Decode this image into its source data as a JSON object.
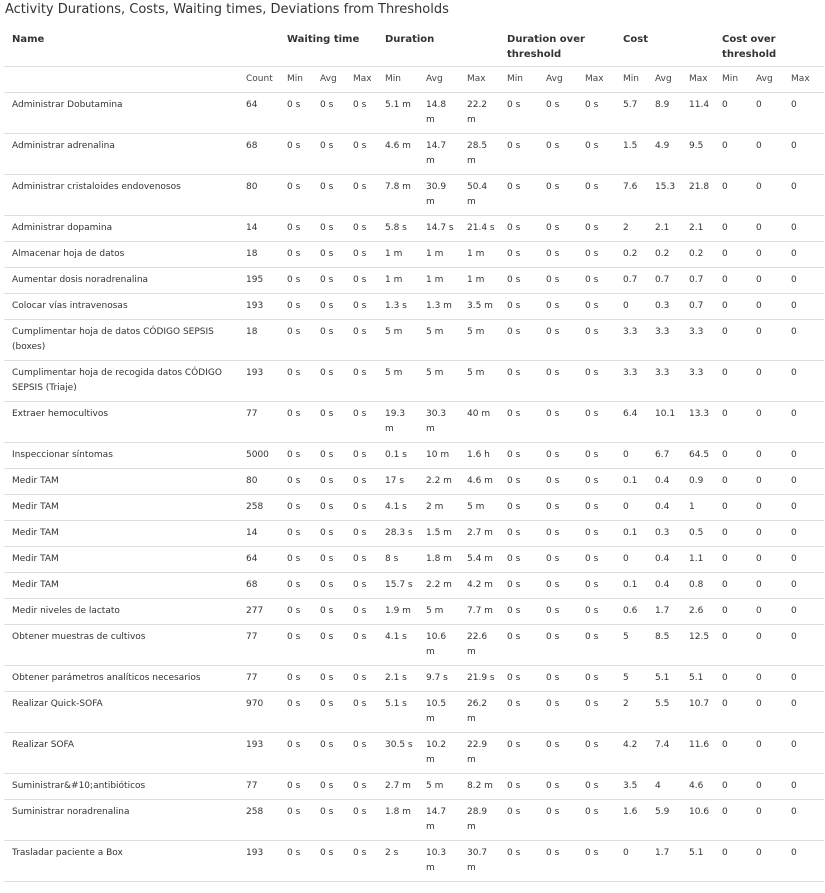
{
  "page": {
    "title": "Activity Durations, Costs, Waiting times, Deviations from Thresholds"
  },
  "table": {
    "group_headers": {
      "name": "Name",
      "waiting": "Waiting time",
      "duration": "Duration",
      "duration_over": "Duration over threshold",
      "cost": "Cost",
      "cost_over": "Cost over threshold"
    },
    "sub_headers": [
      "Count",
      "Min",
      "Avg",
      "Max",
      "Min",
      "Avg",
      "Max",
      "Min",
      "Avg",
      "Max",
      "Min",
      "Avg",
      "Max",
      "Min",
      "Avg",
      "Max"
    ],
    "rows": [
      {
        "name": "Administrar Dobutamina",
        "count": "64",
        "wt_min": "0 s",
        "wt_avg": "0 s",
        "wt_max": "0 s",
        "d_min": "5.1 m",
        "d_avg": "14.8 m",
        "d_max": "22.2 m",
        "do_min": "0 s",
        "do_avg": "0 s",
        "do_max": "0 s",
        "c_min": "5.7",
        "c_avg": "8.9",
        "c_max": "11.4",
        "co_min": "0",
        "co_avg": "0",
        "co_max": "0"
      },
      {
        "name": "Administrar adrenalina",
        "count": "68",
        "wt_min": "0 s",
        "wt_avg": "0 s",
        "wt_max": "0 s",
        "d_min": "4.6 m",
        "d_avg": "14.7 m",
        "d_max": "28.5 m",
        "do_min": "0 s",
        "do_avg": "0 s",
        "do_max": "0 s",
        "c_min": "1.5",
        "c_avg": "4.9",
        "c_max": "9.5",
        "co_min": "0",
        "co_avg": "0",
        "co_max": "0"
      },
      {
        "name": "Administrar cristaloides endovenosos",
        "count": "80",
        "wt_min": "0 s",
        "wt_avg": "0 s",
        "wt_max": "0 s",
        "d_min": "7.8 m",
        "d_avg": "30.9 m",
        "d_max": "50.4 m",
        "do_min": "0 s",
        "do_avg": "0 s",
        "do_max": "0 s",
        "c_min": "7.6",
        "c_avg": "15.3",
        "c_max": "21.8",
        "co_min": "0",
        "co_avg": "0",
        "co_max": "0"
      },
      {
        "name": "Administrar dopamina",
        "count": "14",
        "wt_min": "0 s",
        "wt_avg": "0 s",
        "wt_max": "0 s",
        "d_min": "5.8 s",
        "d_avg": "14.7 s",
        "d_max": "21.4 s",
        "do_min": "0 s",
        "do_avg": "0 s",
        "do_max": "0 s",
        "c_min": "2",
        "c_avg": "2.1",
        "c_max": "2.1",
        "co_min": "0",
        "co_avg": "0",
        "co_max": "0"
      },
      {
        "name": "Almacenar hoja de datos",
        "count": "18",
        "wt_min": "0 s",
        "wt_avg": "0 s",
        "wt_max": "0 s",
        "d_min": "1 m",
        "d_avg": "1 m",
        "d_max": "1 m",
        "do_min": "0 s",
        "do_avg": "0 s",
        "do_max": "0 s",
        "c_min": "0.2",
        "c_avg": "0.2",
        "c_max": "0.2",
        "co_min": "0",
        "co_avg": "0",
        "co_max": "0"
      },
      {
        "name": "Aumentar dosis noradrenalina",
        "count": "195",
        "wt_min": "0 s",
        "wt_avg": "0 s",
        "wt_max": "0 s",
        "d_min": "1 m",
        "d_avg": "1 m",
        "d_max": "1 m",
        "do_min": "0 s",
        "do_avg": "0 s",
        "do_max": "0 s",
        "c_min": "0.7",
        "c_avg": "0.7",
        "c_max": "0.7",
        "co_min": "0",
        "co_avg": "0",
        "co_max": "0"
      },
      {
        "name": "Colocar vías intravenosas",
        "count": "193",
        "wt_min": "0 s",
        "wt_avg": "0 s",
        "wt_max": "0 s",
        "d_min": "1.3 s",
        "d_avg": "1.3 m",
        "d_max": "3.5 m",
        "do_min": "0 s",
        "do_avg": "0 s",
        "do_max": "0 s",
        "c_min": "0",
        "c_avg": "0.3",
        "c_max": "0.7",
        "co_min": "0",
        "co_avg": "0",
        "co_max": "0"
      },
      {
        "name": "Cumplimentar hoja de datos CÓDIGO SEPSIS (boxes)",
        "count": "18",
        "wt_min": "0 s",
        "wt_avg": "0 s",
        "wt_max": "0 s",
        "d_min": "5 m",
        "d_avg": "5 m",
        "d_max": "5 m",
        "do_min": "0 s",
        "do_avg": "0 s",
        "do_max": "0 s",
        "c_min": "3.3",
        "c_avg": "3.3",
        "c_max": "3.3",
        "co_min": "0",
        "co_avg": "0",
        "co_max": "0"
      },
      {
        "name": "Cumplimentar hoja de recogida datos CÓDIGO SEPSIS (Triaje)",
        "count": "193",
        "wt_min": "0 s",
        "wt_avg": "0 s",
        "wt_max": "0 s",
        "d_min": "5 m",
        "d_avg": "5 m",
        "d_max": "5 m",
        "do_min": "0 s",
        "do_avg": "0 s",
        "do_max": "0 s",
        "c_min": "3.3",
        "c_avg": "3.3",
        "c_max": "3.3",
        "co_min": "0",
        "co_avg": "0",
        "co_max": "0"
      },
      {
        "name": "Extraer hemocultivos",
        "count": "77",
        "wt_min": "0 s",
        "wt_avg": "0 s",
        "wt_max": "0 s",
        "d_min": "19.3 m",
        "d_avg": "30.3 m",
        "d_max": "40 m",
        "do_min": "0 s",
        "do_avg": "0 s",
        "do_max": "0 s",
        "c_min": "6.4",
        "c_avg": "10.1",
        "c_max": "13.3",
        "co_min": "0",
        "co_avg": "0",
        "co_max": "0"
      },
      {
        "name": "Inspeccionar síntomas",
        "count": "5000",
        "wt_min": "0 s",
        "wt_avg": "0 s",
        "wt_max": "0 s",
        "d_min": "0.1 s",
        "d_avg": "10 m",
        "d_max": "1.6 h",
        "do_min": "0 s",
        "do_avg": "0 s",
        "do_max": "0 s",
        "c_min": "0",
        "c_avg": "6.7",
        "c_max": "64.5",
        "co_min": "0",
        "co_avg": "0",
        "co_max": "0"
      },
      {
        "name": "Medir TAM",
        "count": "80",
        "wt_min": "0 s",
        "wt_avg": "0 s",
        "wt_max": "0 s",
        "d_min": "17 s",
        "d_avg": "2.2 m",
        "d_max": "4.6 m",
        "do_min": "0 s",
        "do_avg": "0 s",
        "do_max": "0 s",
        "c_min": "0.1",
        "c_avg": "0.4",
        "c_max": "0.9",
        "co_min": "0",
        "co_avg": "0",
        "co_max": "0"
      },
      {
        "name": "Medir TAM",
        "count": "258",
        "wt_min": "0 s",
        "wt_avg": "0 s",
        "wt_max": "0 s",
        "d_min": "4.1 s",
        "d_avg": "2 m",
        "d_max": "5 m",
        "do_min": "0 s",
        "do_avg": "0 s",
        "do_max": "0 s",
        "c_min": "0",
        "c_avg": "0.4",
        "c_max": "1",
        "co_min": "0",
        "co_avg": "0",
        "co_max": "0"
      },
      {
        "name": "Medir TAM",
        "count": "14",
        "wt_min": "0 s",
        "wt_avg": "0 s",
        "wt_max": "0 s",
        "d_min": "28.3 s",
        "d_avg": "1.5 m",
        "d_max": "2.7 m",
        "do_min": "0 s",
        "do_avg": "0 s",
        "do_max": "0 s",
        "c_min": "0.1",
        "c_avg": "0.3",
        "c_max": "0.5",
        "co_min": "0",
        "co_avg": "0",
        "co_max": "0"
      },
      {
        "name": "Medir TAM",
        "count": "64",
        "wt_min": "0 s",
        "wt_avg": "0 s",
        "wt_max": "0 s",
        "d_min": "8 s",
        "d_avg": "1.8 m",
        "d_max": "5.4 m",
        "do_min": "0 s",
        "do_avg": "0 s",
        "do_max": "0 s",
        "c_min": "0",
        "c_avg": "0.4",
        "c_max": "1.1",
        "co_min": "0",
        "co_avg": "0",
        "co_max": "0"
      },
      {
        "name": "Medir TAM",
        "count": "68",
        "wt_min": "0 s",
        "wt_avg": "0 s",
        "wt_max": "0 s",
        "d_min": "15.7 s",
        "d_avg": "2.2 m",
        "d_max": "4.2 m",
        "do_min": "0 s",
        "do_avg": "0 s",
        "do_max": "0 s",
        "c_min": "0.1",
        "c_avg": "0.4",
        "c_max": "0.8",
        "co_min": "0",
        "co_avg": "0",
        "co_max": "0"
      },
      {
        "name": "Medir niveles de lactato",
        "count": "277",
        "wt_min": "0 s",
        "wt_avg": "0 s",
        "wt_max": "0 s",
        "d_min": "1.9 m",
        "d_avg": "5 m",
        "d_max": "7.7 m",
        "do_min": "0 s",
        "do_avg": "0 s",
        "do_max": "0 s",
        "c_min": "0.6",
        "c_avg": "1.7",
        "c_max": "2.6",
        "co_min": "0",
        "co_avg": "0",
        "co_max": "0"
      },
      {
        "name": "Obtener muestras de cultivos",
        "count": "77",
        "wt_min": "0 s",
        "wt_avg": "0 s",
        "wt_max": "0 s",
        "d_min": "4.1 s",
        "d_avg": "10.6 m",
        "d_max": "22.6 m",
        "do_min": "0 s",
        "do_avg": "0 s",
        "do_max": "0 s",
        "c_min": "5",
        "c_avg": "8.5",
        "c_max": "12.5",
        "co_min": "0",
        "co_avg": "0",
        "co_max": "0"
      },
      {
        "name": "Obtener parámetros analíticos necesarios",
        "count": "77",
        "wt_min": "0 s",
        "wt_avg": "0 s",
        "wt_max": "0 s",
        "d_min": "2.1 s",
        "d_avg": "9.7 s",
        "d_max": "21.9 s",
        "do_min": "0 s",
        "do_avg": "0 s",
        "do_max": "0 s",
        "c_min": "5",
        "c_avg": "5.1",
        "c_max": "5.1",
        "co_min": "0",
        "co_avg": "0",
        "co_max": "0"
      },
      {
        "name": "Realizar Quick-SOFA",
        "count": "970",
        "wt_min": "0 s",
        "wt_avg": "0 s",
        "wt_max": "0 s",
        "d_min": "5.1 s",
        "d_avg": "10.5 m",
        "d_max": "26.2 m",
        "do_min": "0 s",
        "do_avg": "0 s",
        "do_max": "0 s",
        "c_min": "2",
        "c_avg": "5.5",
        "c_max": "10.7",
        "co_min": "0",
        "co_avg": "0",
        "co_max": "0"
      },
      {
        "name": "Realizar SOFA",
        "count": "193",
        "wt_min": "0 s",
        "wt_avg": "0 s",
        "wt_max": "0 s",
        "d_min": "30.5 s",
        "d_avg": "10.2 m",
        "d_max": "22.9 m",
        "do_min": "0 s",
        "do_avg": "0 s",
        "do_max": "0 s",
        "c_min": "4.2",
        "c_avg": "7.4",
        "c_max": "11.6",
        "co_min": "0",
        "co_avg": "0",
        "co_max": "0"
      },
      {
        "name": "Suministrar&#10;antibióticos",
        "count": "77",
        "wt_min": "0 s",
        "wt_avg": "0 s",
        "wt_max": "0 s",
        "d_min": "2.7 m",
        "d_avg": "5 m",
        "d_max": "8.2 m",
        "do_min": "0 s",
        "do_avg": "0 s",
        "do_max": "0 s",
        "c_min": "3.5",
        "c_avg": "4",
        "c_max": "4.6",
        "co_min": "0",
        "co_avg": "0",
        "co_max": "0"
      },
      {
        "name": "Suministrar noradrenalina",
        "count": "258",
        "wt_min": "0 s",
        "wt_avg": "0 s",
        "wt_max": "0 s",
        "d_min": "1.8 m",
        "d_avg": "14.7 m",
        "d_max": "28.9 m",
        "do_min": "0 s",
        "do_avg": "0 s",
        "do_max": "0 s",
        "c_min": "1.6",
        "c_avg": "5.9",
        "c_max": "10.6",
        "co_min": "0",
        "co_avg": "0",
        "co_max": "0"
      },
      {
        "name": "Trasladar paciente a Box",
        "count": "193",
        "wt_min": "0 s",
        "wt_avg": "0 s",
        "wt_max": "0 s",
        "d_min": "2 s",
        "d_avg": "10.3 m",
        "d_max": "30.7 m",
        "do_min": "0 s",
        "do_avg": "0 s",
        "do_max": "0 s",
        "c_min": "0",
        "c_avg": "1.7",
        "c_max": "5.1",
        "co_min": "0",
        "co_avg": "0",
        "co_max": "0"
      }
    ]
  }
}
